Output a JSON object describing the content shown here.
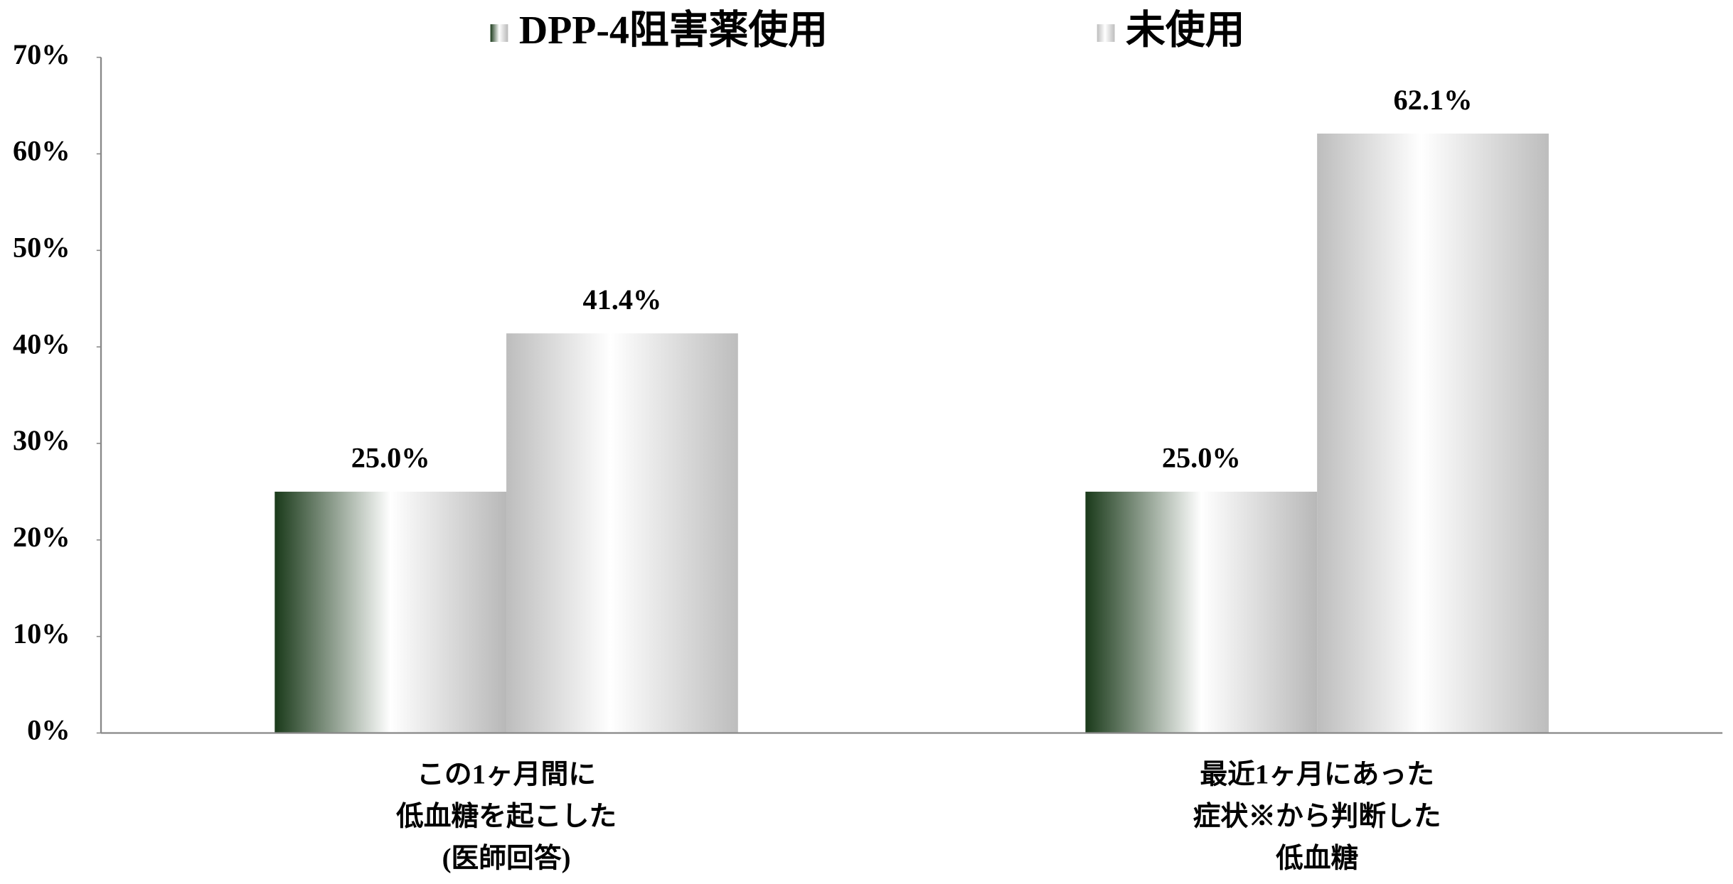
{
  "chart_data": {
    "type": "bar",
    "categories": [
      "この1ヶ月間に\n低血糖を起こした\n(医師回答)",
      "最近1ヶ月にあった\n症状※から判断した\n低血糖"
    ],
    "series": [
      {
        "name": "DPP-4阻害薬使用",
        "color": "#1a3a1a",
        "values": [
          25.0,
          25.0
        ],
        "value_labels": [
          "25.0%",
          "25.0%"
        ]
      },
      {
        "name": "未使用",
        "color": "#bdbdbd",
        "values": [
          41.4,
          62.1
        ],
        "value_labels": [
          "41.4%",
          "62.1%"
        ]
      }
    ],
    "ylim": [
      0,
      70
    ],
    "yticks": [
      {
        "value": 0,
        "label": "0%"
      },
      {
        "value": 10,
        "label": "10%"
      },
      {
        "value": 20,
        "label": "20%"
      },
      {
        "value": 30,
        "label": "30%"
      },
      {
        "value": 40,
        "label": "40%"
      },
      {
        "value": 50,
        "label": "50%"
      },
      {
        "value": 60,
        "label": "60%"
      },
      {
        "value": 70,
        "label": "70%"
      }
    ],
    "legend": "top",
    "grid": false
  }
}
